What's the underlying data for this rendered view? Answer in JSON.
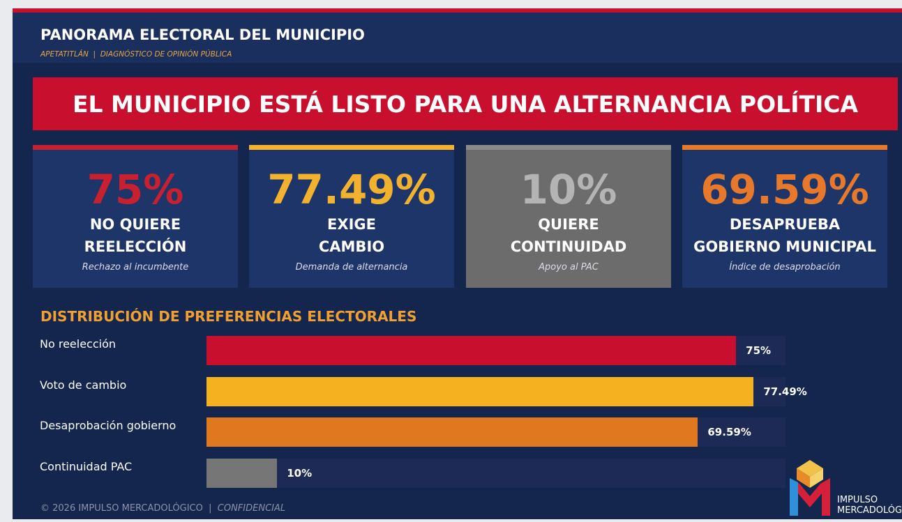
{
  "header": {
    "title": "PANORAMA ELECTORAL DEL MUNICIPIO",
    "subtitle": "APETATITLÁN  |  DIAGNÓSTICO DE OPINIÓN PÚBLICA"
  },
  "banner": "EL MUNICIPIO ESTÁ LISTO PARA UNA ALTERNANCIA POLÍTICA",
  "cards": [
    {
      "value": "75%",
      "line1": "NO QUIERE",
      "line2": "REELECCIÓN",
      "note": "Rechazo al incumbente",
      "color": "#c8202e",
      "background": "#1d3568",
      "accent": "#c8202e"
    },
    {
      "value": "77.49%",
      "line1": "EXIGE",
      "line2": "CAMBIO",
      "note": "Demanda de alternancia",
      "color": "#f3b22e",
      "background": "#1d3568",
      "accent": "#f3b22e"
    },
    {
      "value": "10%",
      "line1": "QUIERE",
      "line2": "CONTINUIDAD",
      "note": "Apoyo al PAC",
      "color": "#b4b4b4",
      "background": "#6c6c6c",
      "accent": "#8a8a8a"
    },
    {
      "value": "69.59%",
      "line1": "DESAPRUEBA",
      "line2": "GOBIERNO MUNICIPAL",
      "note": "Índice de desaprobación",
      "color": "#e8782a",
      "background": "#1d3568",
      "accent": "#e8782a"
    }
  ],
  "chart_data": {
    "type": "bar",
    "orientation": "horizontal",
    "title": "DISTRIBUCIÓN DE PREFERENCIAS ELECTORALES",
    "categories": [
      "No reelección",
      "Voto de cambio",
      "Desaprobación gobierno",
      "Continuidad PAC"
    ],
    "values": [
      75,
      77.49,
      69.59,
      10
    ],
    "value_labels": [
      "75%",
      "77.49%",
      "69.59%",
      "10%"
    ],
    "colors": [
      "#c8102e",
      "#f5b120",
      "#e07820",
      "#767676"
    ],
    "xlim": [
      0,
      82
    ]
  },
  "footer": {
    "copyright": "© 2026 IMPULSO MERCADOLÓGICO",
    "separator": "|",
    "note": "CONFIDENCIAL"
  },
  "logo": {
    "line1": "IMPULSO",
    "line2": "MERCADOLÓGICO"
  }
}
